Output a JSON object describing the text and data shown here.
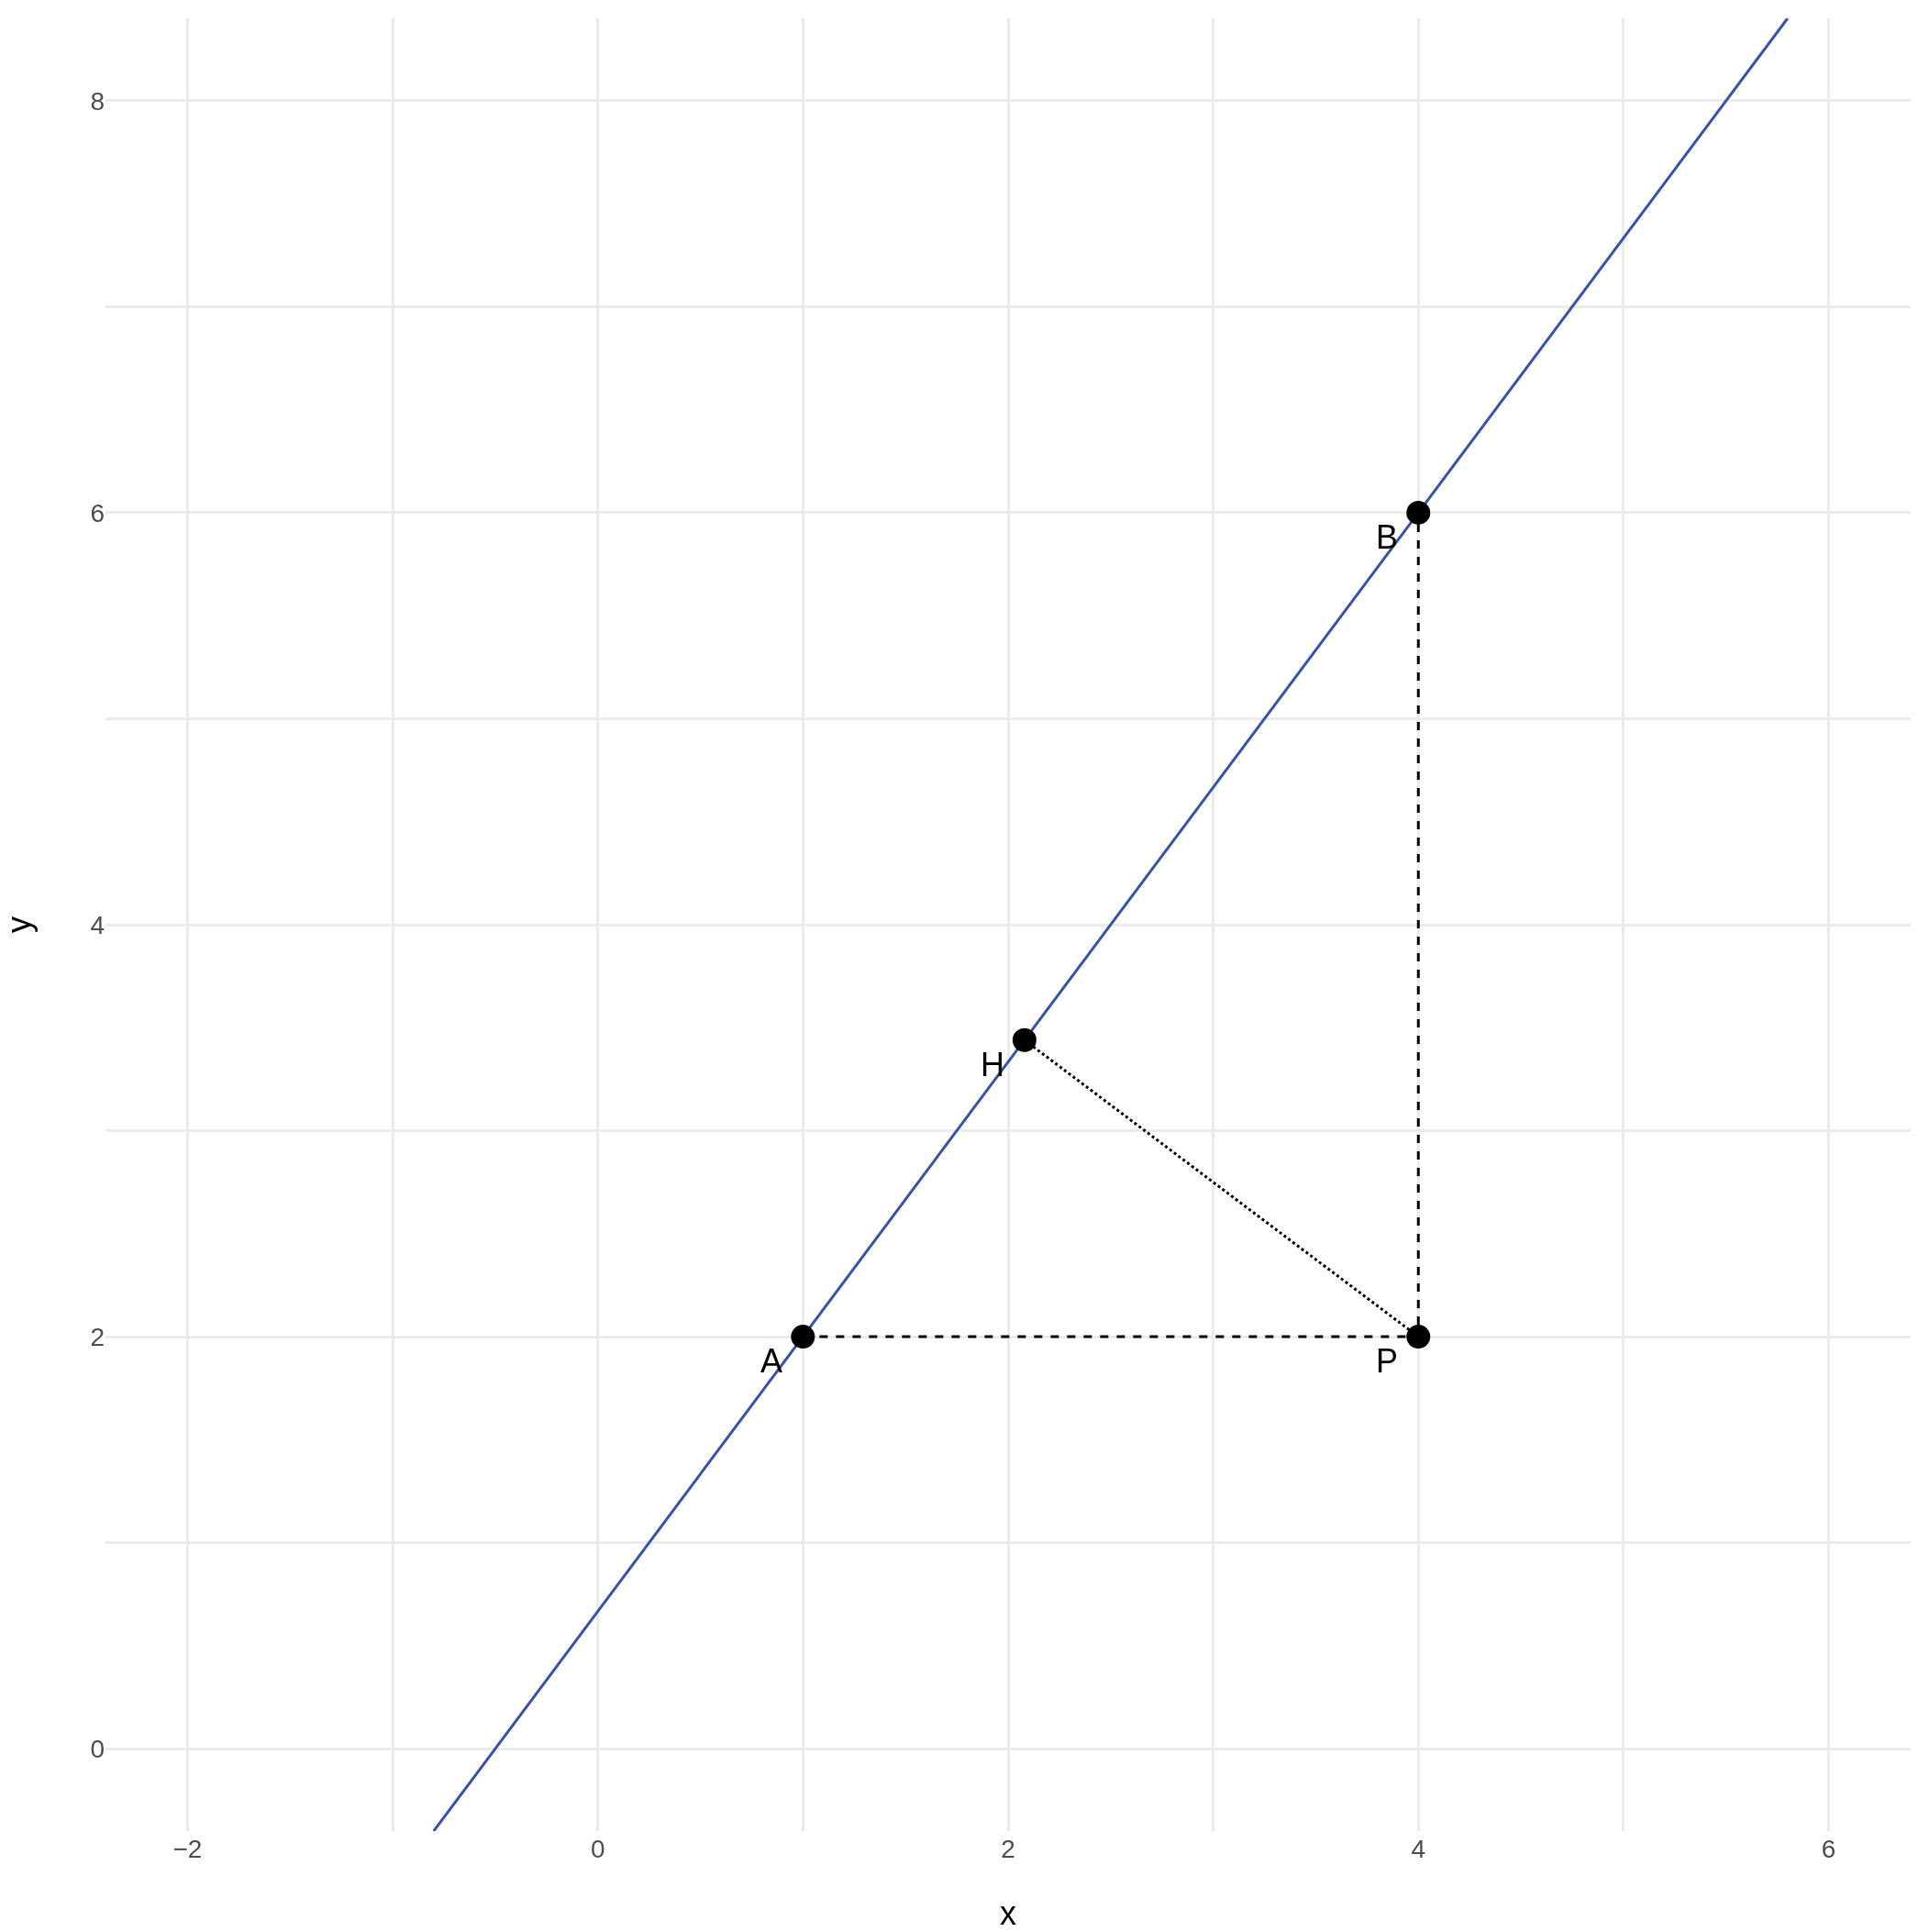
{
  "chart_data": {
    "type": "line",
    "xlabel": "x",
    "ylabel": "y",
    "xlim": [
      -2.4,
      6.4
    ],
    "ylim": [
      -0.4,
      8.4
    ],
    "xticks": [
      {
        "value": -2,
        "label": "−2"
      },
      {
        "value": -1,
        "label": null
      },
      0,
      {
        "value": 1,
        "label": null
      },
      2,
      {
        "value": 3,
        "label": null
      },
      4,
      {
        "value": 5,
        "label": null
      },
      6
    ],
    "yticks": [
      0,
      {
        "value": 1,
        "label": null
      },
      2,
      {
        "value": 3,
        "label": null
      },
      4,
      {
        "value": 5,
        "label": null
      },
      6,
      {
        "value": 7,
        "label": null
      },
      8
    ],
    "grid": true,
    "series": [
      {
        "color": "#3953a4",
        "x": [
          -0.8,
          5.8
        ],
        "values": [
          -0.4,
          8.4
        ],
        "line_style": "solid",
        "marker": "none"
      },
      {
        "color": "#000000",
        "x": [
          1,
          4,
          4
        ],
        "values": [
          2,
          2,
          6
        ],
        "line_style": "dashed",
        "marker": "none"
      },
      {
        "color": "#000000",
        "x": [
          2.08,
          4
        ],
        "values": [
          3.44,
          2
        ],
        "line_style": "dotted",
        "marker": "none"
      },
      {
        "type": "scatter",
        "color": "#000000",
        "x": [
          1,
          4,
          2.08,
          4
        ],
        "values": [
          2,
          6,
          3.44,
          2
        ],
        "marker": "circle"
      }
    ],
    "annotations": [
      {
        "text": "A",
        "x": 1,
        "y": 2
      },
      {
        "text": "B",
        "x": 4,
        "y": 6
      },
      {
        "text": "H",
        "x": 2.08,
        "y": 3.44
      },
      {
        "text": "P",
        "x": 4,
        "y": 2
      }
    ]
  }
}
